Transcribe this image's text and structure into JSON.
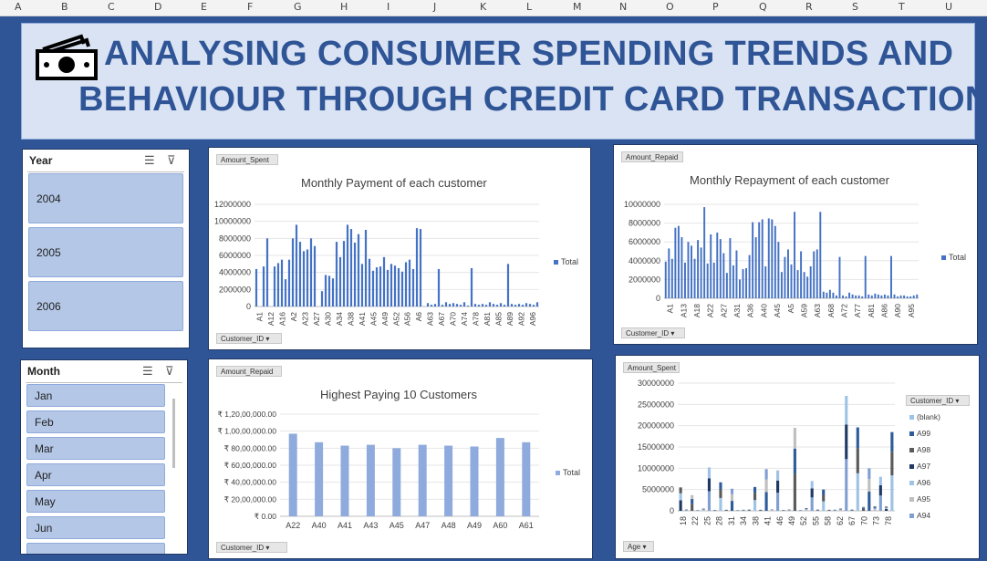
{
  "columns": [
    "A",
    "B",
    "C",
    "D",
    "E",
    "F",
    "G",
    "H",
    "I",
    "J",
    "K",
    "L",
    "M",
    "N",
    "O",
    "P",
    "Q",
    "R",
    "S",
    "T",
    "U"
  ],
  "title": {
    "line1": "ANALYSING CONSUMER SPENDING TRENDS AND",
    "line2": "BEHAVIOUR THROUGH CREDIT CARD TRANSACTION",
    "icon": "money-bills-icon"
  },
  "year_slicer": {
    "title": "Year",
    "items": [
      "2004",
      "2005",
      "2006"
    ]
  },
  "month_slicer": {
    "title": "Month",
    "items": [
      "Jan",
      "Feb",
      "Mar",
      "Apr",
      "May",
      "Jun"
    ]
  },
  "colors": {
    "bar": "#4472c4",
    "bar_light": "#8faadc",
    "accent": "#2f5597"
  },
  "chart1": {
    "field_value": "Amount_Spent",
    "field_axis": "Customer_ID",
    "title": "Monthly Payment of each customer",
    "legend": "Total"
  },
  "chart2": {
    "field_value": "Amount_Repaid",
    "field_axis": "Customer_ID",
    "title": "Monthly Repayment of each customer",
    "legend": "Total"
  },
  "chart3": {
    "field_value": "Amount_Repaid",
    "field_axis": "Customer_ID",
    "title": "Highest Paying 10 Customers",
    "legend": "Total"
  },
  "chart4": {
    "field_value": "Amount_Spent",
    "field_axis": "Age",
    "legend_title": "Customer_ID"
  },
  "chart_data": [
    {
      "type": "bar",
      "title": "Monthly Payment of each customer",
      "ylim": [
        0,
        12000000
      ],
      "yticks": [
        0,
        2000000,
        4000000,
        6000000,
        8000000,
        10000000,
        12000000
      ],
      "xtick_labels": [
        "A1",
        "A12",
        "A16",
        "A2",
        "A23",
        "A27",
        "A30",
        "A34",
        "A38",
        "A41",
        "A45",
        "A49",
        "A52",
        "A56",
        "A6",
        "A63",
        "A67",
        "A70",
        "A74",
        "A78",
        "A81",
        "A85",
        "A89",
        "A92",
        "A96"
      ],
      "series": [
        {
          "name": "Total",
          "values": [
            4400000,
            0,
            4700000,
            8000000,
            0,
            4700000,
            5100000,
            5500000,
            3200000,
            5500000,
            8000000,
            9600000,
            7600000,
            6500000,
            6700000,
            8000000,
            7100000,
            0,
            1800000,
            3700000,
            3600000,
            3300000,
            7600000,
            5800000,
            7700000,
            9600000,
            9100000,
            7500000,
            8500000,
            5000000,
            9000000,
            5600000,
            4200000,
            4600000,
            4700000,
            5800000,
            4300000,
            5000000,
            4800000,
            4500000,
            4100000,
            5200000,
            5500000,
            4400000,
            9200000,
            9100000,
            0,
            400000,
            200000,
            300000,
            4400000,
            200000,
            500000,
            300000,
            400000,
            300000,
            200000,
            500000,
            100000,
            4500000,
            300000,
            200000,
            300000,
            200000,
            500000,
            300000,
            200000,
            400000,
            200000,
            5000000,
            300000,
            200000,
            300000,
            200000,
            400000,
            300000,
            200000,
            500000
          ]
        }
      ]
    },
    {
      "type": "bar",
      "title": "Monthly Repayment of each customer",
      "ylim": [
        0,
        10000000
      ],
      "yticks": [
        0,
        2000000,
        4000000,
        6000000,
        8000000,
        10000000
      ],
      "xtick_labels": [
        "A1",
        "A13",
        "A18",
        "A22",
        "A27",
        "A31",
        "A36",
        "A40",
        "A45",
        "A5",
        "A59",
        "A63",
        "A68",
        "A72",
        "A77",
        "A81",
        "A86",
        "A90",
        "A95"
      ],
      "series": [
        {
          "name": "Total",
          "values": [
            3900000,
            5300000,
            4200000,
            7500000,
            7700000,
            6500000,
            3800000,
            6000000,
            5600000,
            4200000,
            6200000,
            5400000,
            9700000,
            3700000,
            6800000,
            3800000,
            7000000,
            6300000,
            4800000,
            2700000,
            6400000,
            3500000,
            5100000,
            2000000,
            3100000,
            3200000,
            4600000,
            8100000,
            6500000,
            8100000,
            8400000,
            3400000,
            8500000,
            8400000,
            7700000,
            6000000,
            2800000,
            4400000,
            5200000,
            3600000,
            9200000,
            3000000,
            5000000,
            2800000,
            2300000,
            3400000,
            5000000,
            5200000,
            9200000,
            700000,
            600000,
            900000,
            600000,
            300000,
            4400000,
            300000,
            200000,
            600000,
            400000,
            300000,
            300000,
            200000,
            4500000,
            400000,
            300000,
            500000,
            400000,
            300000,
            400000,
            300000,
            4500000,
            400000,
            200000,
            300000,
            300000,
            200000,
            200000,
            300000,
            400000
          ]
        }
      ]
    },
    {
      "type": "bar",
      "title": "Highest Paying 10 Customers",
      "categories": [
        "A22",
        "A40",
        "A41",
        "A43",
        "A45",
        "A47",
        "A48",
        "A49",
        "A60",
        "A61"
      ],
      "ylim": [
        0,
        120000000
      ],
      "yticks": [
        0,
        20000000,
        40000000,
        60000000,
        80000000,
        100000000,
        120000000
      ],
      "ytick_labels": [
        "₹ 0.00",
        "₹ 20,00,000.00",
        "₹ 40,00,000.00",
        "₹ 60,00,000.00",
        "₹ 80,00,000.00",
        "₹ 1,00,00,000.00",
        "₹ 1,20,00,000.00"
      ],
      "series": [
        {
          "name": "Total",
          "values": [
            97000000,
            87000000,
            83000000,
            84000000,
            80000000,
            84000000,
            83000000,
            82000000,
            92000000,
            87000000
          ]
        }
      ]
    },
    {
      "type": "bar",
      "stacked": true,
      "ylim": [
        0,
        30000000
      ],
      "yticks": [
        0,
        5000000,
        10000000,
        15000000,
        20000000,
        25000000,
        30000000
      ],
      "categories": [
        "18",
        "22",
        "25",
        "28",
        "31",
        "34",
        "38",
        "41",
        "46",
        "49",
        "52",
        "55",
        "58",
        "62",
        "67",
        "70",
        "73",
        "78"
      ],
      "xtick_labels": [
        "18",
        "22",
        "25",
        "28",
        "31",
        "34",
        "38",
        "41",
        "46",
        "49",
        "52",
        "55",
        "58",
        "62",
        "67",
        "70",
        "73",
        "78"
      ],
      "series": [
        {
          "name": "(blank)",
          "color": "#9dc3e6"
        },
        {
          "name": "A99",
          "color": "#2e5b9a"
        },
        {
          "name": "A98",
          "color": "#5a5a5a"
        },
        {
          "name": "A97",
          "color": "#1f3864"
        },
        {
          "name": "A96",
          "color": "#9dc3e6"
        },
        {
          "name": "A95",
          "color": "#bfbfbf"
        },
        {
          "name": "A94",
          "color": "#7f9fd4"
        }
      ],
      "totals": [
        5500000,
        300000,
        3700000,
        200000,
        500000,
        10200000,
        200000,
        6700000,
        300000,
        5200000,
        200000,
        300000,
        300000,
        5600000,
        300000,
        9800000,
        300000,
        9500000,
        200000,
        300000,
        19500000,
        200000,
        600000,
        7000000,
        300000,
        5000000,
        300000,
        300000,
        500000,
        27000000,
        300000,
        19600000,
        1000000,
        10000000,
        1000000,
        8000000,
        1000000,
        18500000
      ]
    }
  ]
}
